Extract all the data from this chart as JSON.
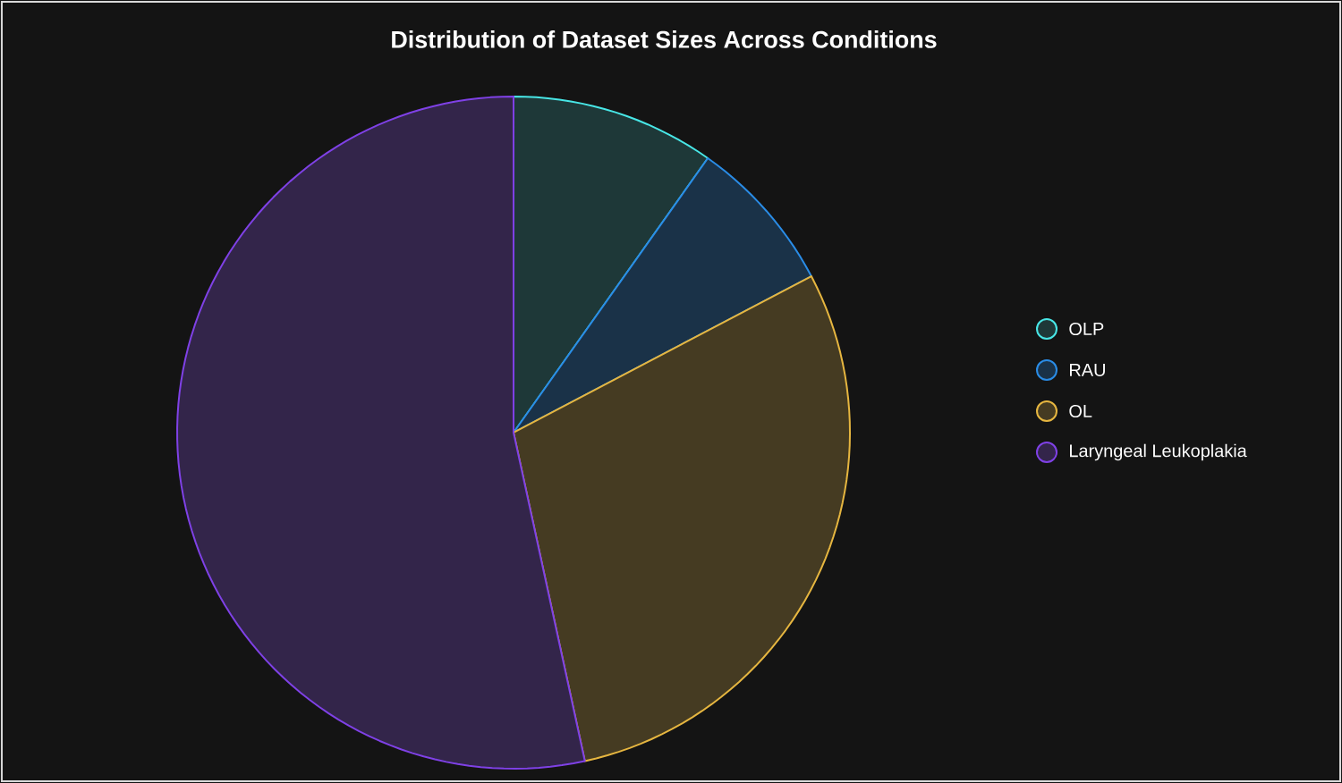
{
  "chart_data": {
    "type": "pie",
    "title": "Distribution of Dataset Sizes Across Conditions",
    "categories": [
      "OLP",
      "RAU",
      "OL",
      "Laryngeal Leukoplakia"
    ],
    "values": [
      9.8,
      7.5,
      29.3,
      53.4
    ],
    "colors": [
      "#1e3838",
      "#1a3248",
      "#453b22",
      "#33254a"
    ],
    "legend": "right"
  }
}
